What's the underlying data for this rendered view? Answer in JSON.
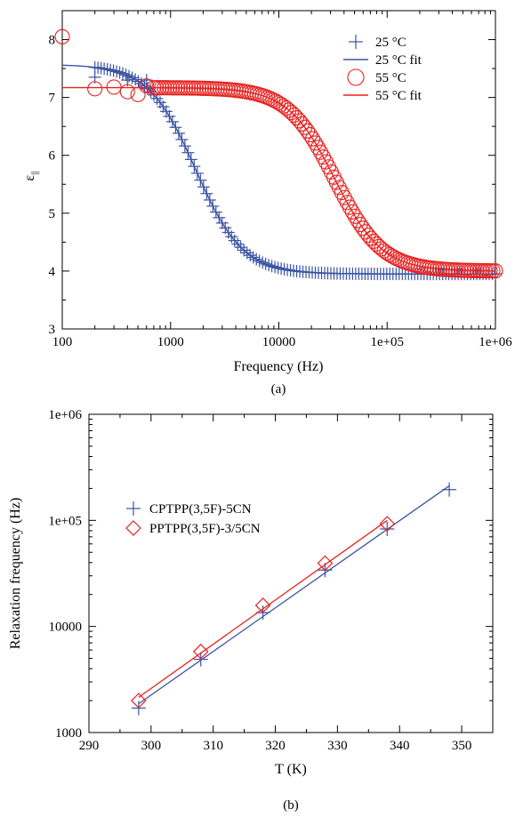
{
  "chart_data": [
    {
      "type": "scatter",
      "caption": "(a)",
      "xlabel": "Frequency (Hz)",
      "ylabel_main": "ε",
      "ylabel_sub": "||",
      "xscale": "log",
      "xlim": [
        100,
        1000000
      ],
      "ylim": [
        3,
        8.5
      ],
      "xticks": [
        100,
        1000,
        10000,
        100000,
        1000000
      ],
      "xtick_labels": [
        "100",
        "1000",
        "10000",
        "1e+05",
        "1e+06"
      ],
      "yticks": [
        3,
        4,
        5,
        6,
        7,
        8
      ],
      "ytick_labels": [
        "3",
        "4",
        "5",
        "6",
        "7",
        "8"
      ],
      "grid": false,
      "legend_position": "top-right",
      "series": [
        {
          "name": "25 °C",
          "kind": "points",
          "marker": "plus",
          "color": "#3b54a5",
          "eps_inf": 3.95,
          "delta": 3.62,
          "f_relax": 1700,
          "alpha": 0.0,
          "x_range": [
            200,
            1000000
          ],
          "n_points": 130,
          "x_extra": [
            [
              200,
              7.35
            ],
            [
              400,
              7.3
            ],
            [
              600,
              7.3
            ]
          ]
        },
        {
          "name": "25 °C fit",
          "kind": "line",
          "color": "#3b54a5",
          "eps_inf": 3.95,
          "delta": 3.62,
          "f_relax": 1700,
          "alpha": 0.0
        },
        {
          "name": "55 °C",
          "kind": "points",
          "marker": "circle",
          "color": "#e8211f",
          "eps_inf": 4.0,
          "delta": 3.17,
          "f_relax": 33000,
          "alpha": 0.0,
          "x_range": [
            700,
            1000000
          ],
          "n_points": 130,
          "x_extra": [
            [
              100,
              8.05
            ],
            [
              200,
              7.15
            ],
            [
              300,
              7.18
            ],
            [
              400,
              7.1
            ],
            [
              500,
              7.05
            ],
            [
              600,
              7.2
            ]
          ]
        },
        {
          "name": "55 °C fit",
          "kind": "line",
          "color": "#e8211f",
          "eps_inf": 4.0,
          "delta": 3.17,
          "f_relax": 33000,
          "alpha": 0.0
        }
      ]
    },
    {
      "type": "scatter",
      "caption": "(b)",
      "xlabel": "T (K)",
      "ylabel": "Relaxation frequency (Hz)",
      "yscale": "log",
      "xlim": [
        290,
        355
      ],
      "ylim": [
        1000,
        1000000
      ],
      "xticks": [
        290,
        300,
        310,
        320,
        330,
        340,
        350
      ],
      "xtick_labels": [
        "290",
        "300",
        "310",
        "320",
        "330",
        "340",
        "350"
      ],
      "yticks": [
        1000,
        10000,
        100000,
        1000000
      ],
      "ytick_labels": [
        "1000",
        "10000",
        "1e+05",
        "1e+06"
      ],
      "grid": false,
      "legend_position": "top-left",
      "series": [
        {
          "name": "CPTPP(3,5F)-5CN",
          "marker": "plus",
          "color": "#3b54a5",
          "x": [
            298,
            308,
            318,
            328,
            338,
            348
          ],
          "y": [
            1700,
            4900,
            13500,
            34000,
            83000,
            195000
          ]
        },
        {
          "name": "PPTPP(3,5F)-3/5CN",
          "marker": "diamond",
          "color": "#e8211f",
          "x": [
            298,
            308,
            318,
            328,
            338
          ],
          "y": [
            2000,
            5800,
            15800,
            39500,
            93000
          ]
        }
      ]
    }
  ]
}
